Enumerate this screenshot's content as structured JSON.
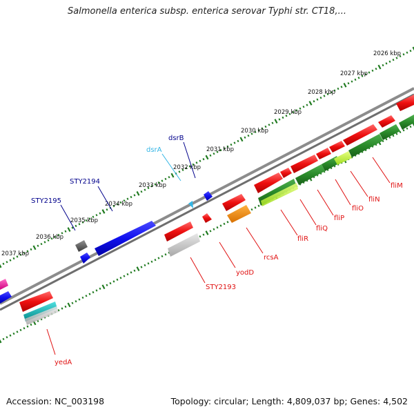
{
  "header": {
    "title": "Salmonella enterica subsp. enterica serovar Typhi str. CT18,..."
  },
  "footer": {
    "accession": "Accession: NC_003198",
    "summary": "Topology: circular; Length: 4,809,037 bp; Genes: 4,502"
  },
  "colors": {
    "axis": "#8c8c8c",
    "tick": "#1f7a1f",
    "label_dark": "#111111",
    "forward_gene": "#2a8a2a",
    "reverse_gene": "#e01010"
  },
  "kbp_labels": [
    "2026 kbp",
    "2027 kbp",
    "2028 kbp",
    "2029 kbp",
    "2030 kbp",
    "2031 kbp",
    "2032 kbp",
    "2033 kbp",
    "2034 kbp",
    "2035 kbp",
    "2036 kbp",
    "2037 kbp"
  ],
  "genes_top": [
    {
      "name": "dsrB",
      "color": "#00008b"
    },
    {
      "name": "dsrA",
      "color": "#33b5e5"
    },
    {
      "name": "STY2194",
      "color": "#00008b"
    },
    {
      "name": "STY2195",
      "color": "#00008b"
    }
  ],
  "genes_bottom": [
    {
      "name": "fliM",
      "color": "#e01010"
    },
    {
      "name": "fliN",
      "color": "#e01010"
    },
    {
      "name": "fliO",
      "color": "#e01010"
    },
    {
      "name": "fliP",
      "color": "#e01010"
    },
    {
      "name": "fliQ",
      "color": "#e01010"
    },
    {
      "name": "fliR",
      "color": "#e01010"
    },
    {
      "name": "rcsA",
      "color": "#e01010"
    },
    {
      "name": "yodD",
      "color": "#e01010"
    },
    {
      "name": "STY2193",
      "color": "#e01010"
    },
    {
      "name": "yedA",
      "color": "#e01010"
    }
  ]
}
